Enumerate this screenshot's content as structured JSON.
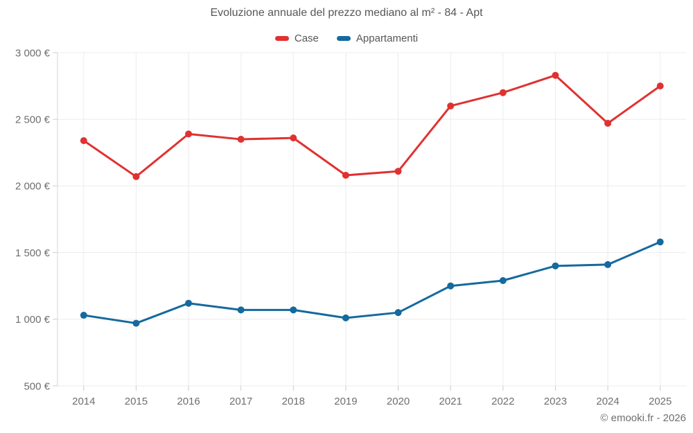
{
  "chart_data": {
    "type": "line",
    "title": "Evoluzione annuale del prezzo mediano al m² - 84 - Apt",
    "categories": [
      "2014",
      "2015",
      "2016",
      "2017",
      "2018",
      "2019",
      "2020",
      "2021",
      "2022",
      "2023",
      "2024",
      "2025"
    ],
    "series": [
      {
        "name": "Case",
        "color": "#e03131",
        "values": [
          2340,
          2070,
          2390,
          2350,
          2360,
          2080,
          2110,
          2600,
          2700,
          2830,
          2470,
          2750
        ]
      },
      {
        "name": "Appartamenti",
        "color": "#15699e",
        "values": [
          1030,
          970,
          1120,
          1070,
          1070,
          1010,
          1050,
          1250,
          1290,
          1400,
          1410,
          1580
        ]
      }
    ],
    "xlabel": "",
    "ylabel": "",
    "ylim": [
      500,
      3000
    ],
    "ytick_step": 500,
    "ytick_labels": [
      "500 €",
      "1 000 €",
      "1 500 €",
      "2 000 €",
      "2 500 €",
      "3 000 €"
    ],
    "grid": true,
    "legend_position": "top",
    "colors": {
      "grid": "#ececec",
      "axis_line": "#d6d6d6",
      "tick": "#cccccc",
      "axis_text": "#6e6e6e",
      "title_text": "#565656"
    }
  },
  "footer": {
    "copyright": "© emooki.fr - 2026"
  }
}
